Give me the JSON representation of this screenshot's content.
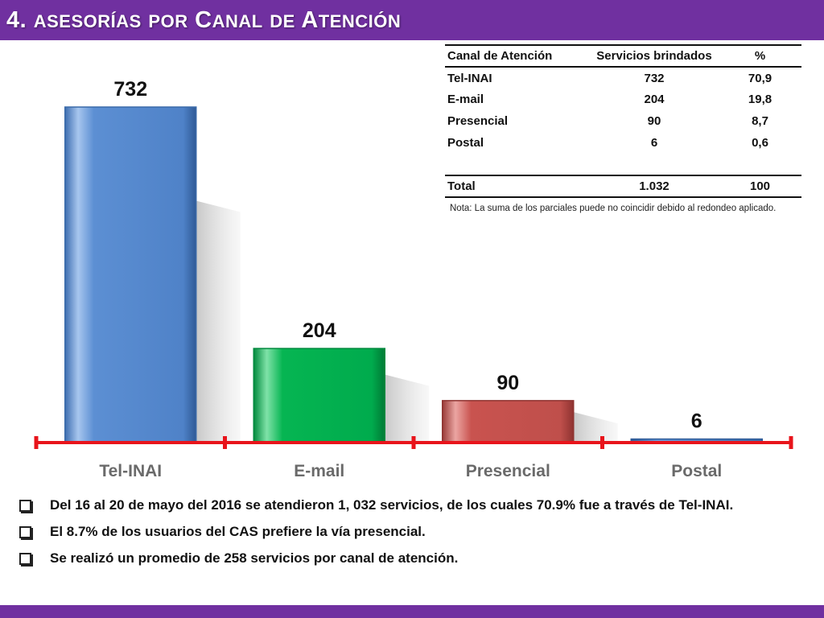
{
  "header": {
    "num": "4.",
    "w1_cap": "",
    "w1_rest": "asesorías",
    "w2_rest": "por",
    "w3_cap": "C",
    "w3_rest": "anal",
    "w4_rest": "de",
    "w5_cap": "A",
    "w5_rest": "tención"
  },
  "colors": {
    "header": "#7030a0",
    "axis": "#e8141b",
    "tel": "#558ed5",
    "email": "#00b050",
    "presencial": "#c0504d",
    "postal": "#4a7ebb"
  },
  "chart_data": {
    "type": "bar",
    "categories": [
      "Tel-INAI",
      "E-mail",
      "Presencial",
      "Postal"
    ],
    "values": [
      732,
      204,
      90,
      6
    ],
    "ylim": [
      0,
      732
    ],
    "grid": false,
    "legend": "none"
  },
  "table": {
    "headers": [
      "Canal de Atención",
      "Servicios brindados",
      "%"
    ],
    "rows": [
      [
        "Tel-INAI",
        "732",
        "70,9"
      ],
      [
        "E-mail",
        "204",
        "19,8"
      ],
      [
        "Presencial",
        "90",
        "8,7"
      ],
      [
        "Postal",
        "6",
        "0,6"
      ]
    ],
    "total": [
      "Total",
      "1.032",
      "100"
    ],
    "note": "Nota: La suma de los parciales puede no coincidir debido al redondeo aplicado."
  },
  "bullets": [
    "Del 16 al 20 de mayo del 2016 se atendieron 1, 032 servicios, de los cuales 70.9% fue a través de Tel-INAI.",
    "El 8.7% de los usuarios del CAS prefiere la vía presencial.",
    "Se realizó un promedio de 258 servicios por canal de atención."
  ]
}
